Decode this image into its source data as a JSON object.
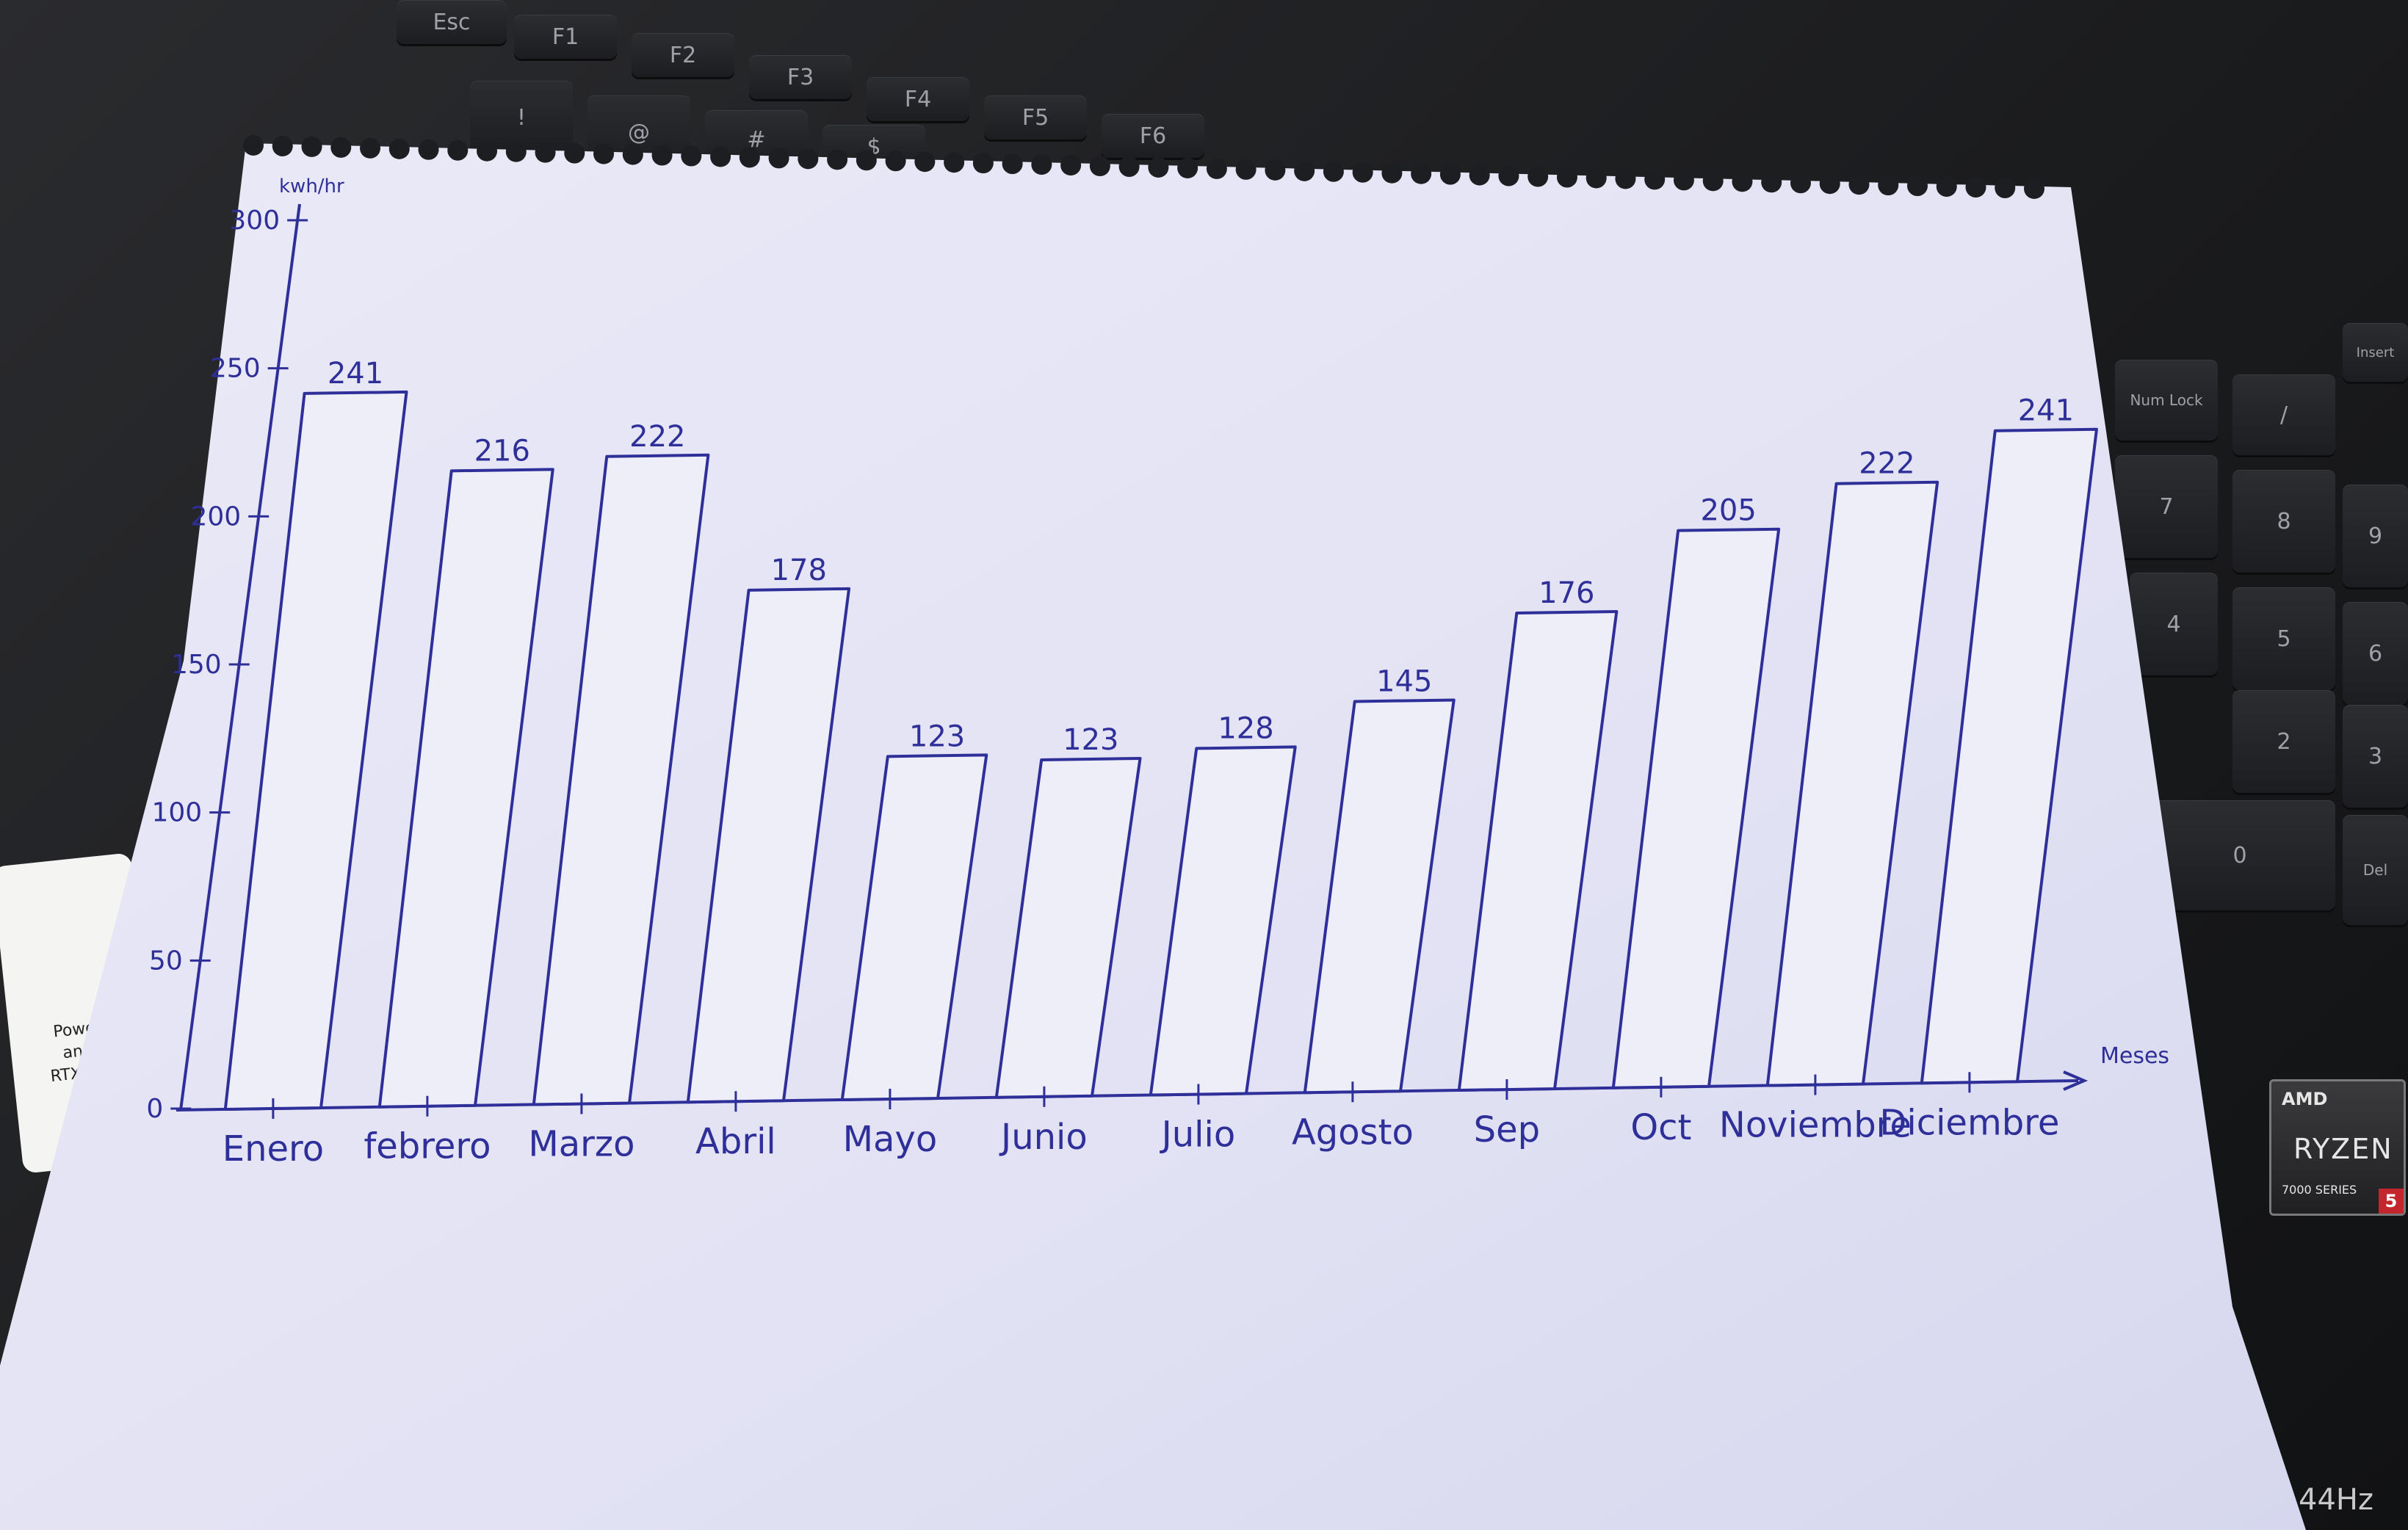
{
  "chart_data": {
    "type": "bar",
    "ylabel": "kwh/hr",
    "xlabel": "Meses",
    "ylim": [
      0,
      300
    ],
    "yticks": [
      "300",
      "250",
      "200",
      "150",
      "100",
      "50",
      "0"
    ],
    "categories": [
      "Enero",
      "febrero",
      "Marzo",
      "Abril",
      "Mayo",
      "Junio",
      "Julio",
      "Agosto",
      "Sep",
      "Oct",
      "Noviembre",
      "Diciembre"
    ],
    "values": [
      241,
      216,
      222,
      178,
      123,
      123,
      128,
      145,
      176,
      205,
      222,
      241
    ],
    "data_labels": [
      "241",
      "216",
      "222",
      "178",
      "123",
      "123",
      "128",
      "145",
      "176",
      "205",
      "222",
      "241"
    ],
    "colors": {
      "ink": "#2f2f9a",
      "paper": "#eaeaf6",
      "bar_fill": "#eeeef8"
    },
    "grid": false
  },
  "background": {
    "keys": [
      "Esc",
      "F1",
      "F2",
      "F3",
      "F4",
      "F5",
      "F6",
      "!",
      "@",
      "#",
      "$",
      "Num Lock",
      "/",
      "7",
      "8",
      "9",
      "4",
      "5",
      "6",
      "2",
      "3",
      "0",
      "Del",
      "Insert"
    ],
    "badge": {
      "brand": "AMD",
      "name": "RYZEN",
      "series": "7000 SERIES",
      "tier": "5"
    },
    "refresh": "44Hz",
    "sticker_lines": [
      "Powerful",
      "and NV",
      "RTX™"
    ]
  }
}
